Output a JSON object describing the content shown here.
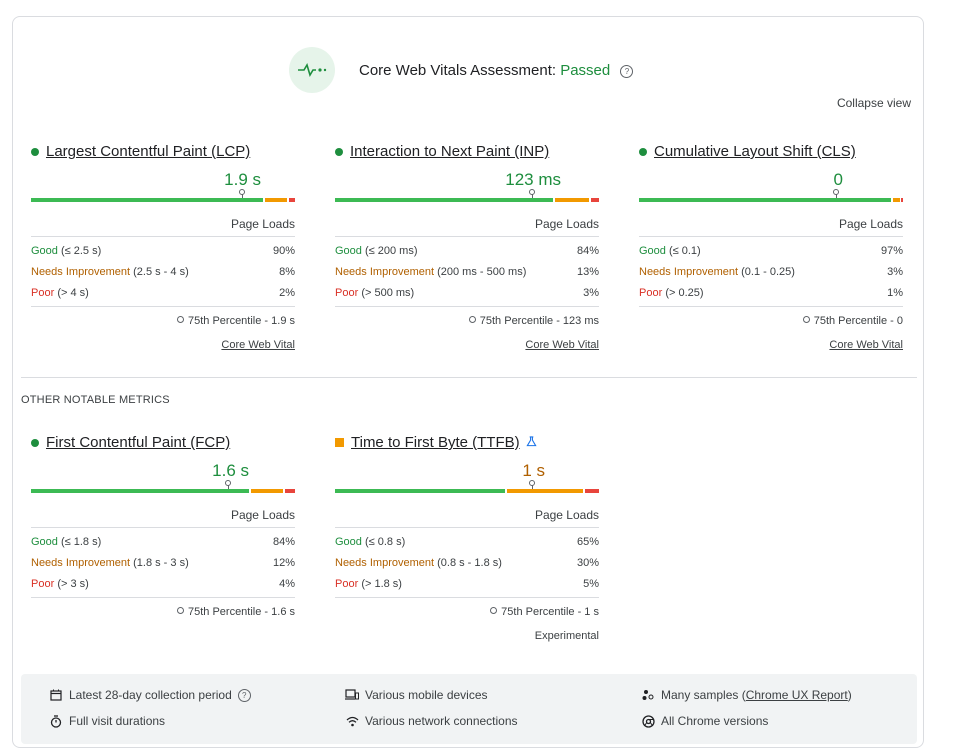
{
  "header": {
    "title_prefix": "Core Web Vitals Assessment: ",
    "title_status": "Passed",
    "help": "?",
    "collapse": "Collapse view"
  },
  "colors": {
    "good": "#1e8e3e",
    "needs_improvement": "#f29900",
    "poor": "#e8453c"
  },
  "core": [
    {
      "name": "Largest Contentful Paint (LCP)",
      "value": "1.9 s",
      "loads": "Page Loads",
      "good_label": "Good",
      "good_range": "(≤ 2.5 s)",
      "good_pct": "90%",
      "ni_label": "Needs Improvement",
      "ni_range": "(2.5 s - 4 s)",
      "ni_pct": "8%",
      "poor_label": "Poor",
      "poor_range": "(> 4 s)",
      "poor_pct": "2%",
      "percentile": "75th Percentile - 1.9 s",
      "footer": "Core Web Vital"
    },
    {
      "name": "Interaction to Next Paint (INP)",
      "value": "123 ms",
      "loads": "Page Loads",
      "good_label": "Good",
      "good_range": "(≤ 200 ms)",
      "good_pct": "84%",
      "ni_label": "Needs Improvement",
      "ni_range": "(200 ms - 500 ms)",
      "ni_pct": "13%",
      "poor_label": "Poor",
      "poor_range": "(> 500 ms)",
      "poor_pct": "3%",
      "percentile": "75th Percentile - 123 ms",
      "footer": "Core Web Vital"
    },
    {
      "name": "Cumulative Layout Shift (CLS)",
      "value": "0",
      "loads": "Page Loads",
      "good_label": "Good",
      "good_range": "(≤ 0.1)",
      "good_pct": "97%",
      "ni_label": "Needs Improvement",
      "ni_range": "(0.1 - 0.25)",
      "ni_pct": "3%",
      "poor_label": "Poor",
      "poor_range": "(> 0.25)",
      "poor_pct": "1%",
      "percentile": "75th Percentile - 0",
      "footer": "Core Web Vital"
    }
  ],
  "other_heading": "OTHER NOTABLE METRICS",
  "other": [
    {
      "name": "First Contentful Paint (FCP)",
      "value": "1.6 s",
      "loads": "Page Loads",
      "good_label": "Good",
      "good_range": "(≤ 1.8 s)",
      "good_pct": "84%",
      "ni_label": "Needs Improvement",
      "ni_range": "(1.8 s - 3 s)",
      "ni_pct": "12%",
      "poor_label": "Poor",
      "poor_range": "(> 3 s)",
      "poor_pct": "4%",
      "percentile": "75th Percentile - 1.6 s"
    },
    {
      "name": "Time to First Byte (TTFB)",
      "value": "1 s",
      "loads": "Page Loads",
      "good_label": "Good",
      "good_range": "(≤ 0.8 s)",
      "good_pct": "65%",
      "ni_label": "Needs Improvement",
      "ni_range": "(0.8 s - 1.8 s)",
      "ni_pct": "30%",
      "poor_label": "Poor",
      "poor_range": "(> 1.8 s)",
      "poor_pct": "5%",
      "percentile": "75th Percentile - 1 s",
      "footer": "Experimental"
    }
  ],
  "footer": {
    "period": "Latest 28-day collection period",
    "durations": "Full visit durations",
    "devices": "Various mobile devices",
    "network": "Various network connections",
    "samples_prefix": "Many samples (",
    "samples_link": "Chrome UX Report",
    "samples_suffix": ")",
    "versions": "All Chrome versions"
  }
}
